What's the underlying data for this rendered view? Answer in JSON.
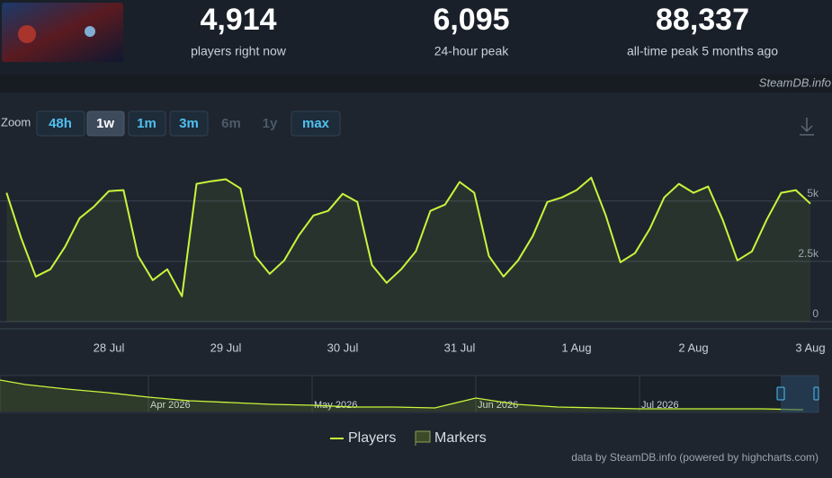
{
  "header": {
    "stats": [
      {
        "number": "4,914",
        "label": "players right now"
      },
      {
        "number": "6,095",
        "label": "24-hour peak"
      },
      {
        "number": "88,337",
        "label": "all-time peak 5 months ago"
      }
    ],
    "brand": "SteamDB.info"
  },
  "zoom": {
    "label": "Zoom",
    "buttons": [
      "48h",
      "1w",
      "1m",
      "3m",
      "6m",
      "1y",
      "max"
    ]
  },
  "chart_data": [
    {
      "type": "line",
      "categories": [
        null,
        null,
        null,
        null,
        null,
        null,
        null,
        "28 Jul",
        null,
        null,
        null,
        null,
        null,
        null,
        null,
        "29 Jul",
        null,
        null,
        null,
        null,
        null,
        null,
        null,
        "30 Jul",
        null,
        null,
        null,
        null,
        null,
        null,
        null,
        "31 Jul",
        null,
        null,
        null,
        null,
        null,
        null,
        null,
        "1 Aug",
        null,
        null,
        null,
        null,
        null,
        null,
        null,
        "2 Aug",
        null,
        null,
        null,
        null,
        null,
        null,
        null,
        "3 Aug"
      ],
      "series": [
        {
          "name": "Players",
          "color": "#c8f53c",
          "values": [
            5340,
            3470,
            1870,
            2170,
            3100,
            4290,
            4780,
            5410,
            5450,
            2720,
            1720,
            2170,
            1050,
            5710,
            5820,
            5900,
            5520,
            2720,
            1980,
            2540,
            3580,
            4400,
            4590,
            5300,
            4960,
            2350,
            1610,
            2170,
            2910,
            4590,
            4850,
            5790,
            5340,
            2720,
            1870,
            2540,
            3550,
            4960,
            5150,
            5450,
            5970,
            4400,
            2460,
            2840,
            3840,
            5150,
            5710,
            5340,
            5600,
            4220,
            2540,
            2910,
            4220,
            5340,
            5450,
            4890
          ]
        }
      ],
      "ylim": [
        0,
        7000
      ],
      "yticks": [
        0,
        {
          "value": 2500,
          "label": "2.5k"
        },
        {
          "value": 5000,
          "label": "5k"
        }
      ],
      "grid": true,
      "markers_legend": "Markers"
    },
    {
      "type": "area",
      "categories": [
        null,
        null,
        null,
        null,
        "Apr 2026",
        null,
        null,
        null,
        "May 2026",
        null,
        null,
        null,
        "Jun 2026",
        null,
        null,
        null,
        "Jul 2026",
        null,
        null,
        null,
        null
      ],
      "values": [
        85500,
        67500,
        56250,
        47250,
        36000,
        27000,
        22500,
        18000,
        15750,
        11250,
        11250,
        9000,
        33750,
        18000,
        11250,
        9000,
        6750,
        6750,
        6750,
        6750,
        4500
      ],
      "color": "#c8f53c",
      "ylim": [
        0,
        90000
      ]
    }
  ],
  "footer": "data by SteamDB.info (powered by highcharts.com)"
}
